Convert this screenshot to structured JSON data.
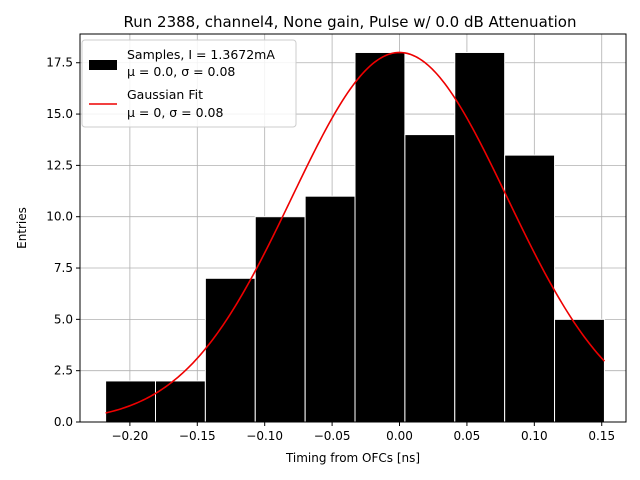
{
  "chart_data": {
    "type": "bar",
    "title": "Run 2388, channel4, None gain, Pulse w/ 0.0 dB Attenuation",
    "xlabel": "Timing from OFCs [ns]",
    "ylabel": "Entries",
    "xlim": [
      -0.237,
      0.168
    ],
    "ylim": [
      0,
      18.9
    ],
    "xticks": [
      -0.2,
      -0.15,
      -0.1,
      -0.05,
      0.0,
      0.05,
      0.1,
      0.15
    ],
    "xtick_labels": [
      "−0.20",
      "−0.15",
      "−0.10",
      "−0.05",
      "0.00",
      "0.05",
      "0.10",
      "0.15"
    ],
    "yticks": [
      0,
      2.5,
      5,
      7.5,
      10,
      12.5,
      15,
      17.5
    ],
    "ytick_labels": [
      "0.0",
      "2.5",
      "5.0",
      "7.5",
      "10.0",
      "12.5",
      "15.0",
      "17.5"
    ],
    "grid": true,
    "legend_position": "top-left",
    "histogram": {
      "bin_edges": [
        -0.218,
        -0.181,
        -0.144,
        -0.107,
        -0.07,
        -0.033,
        0.004,
        0.041,
        0.078,
        0.115,
        0.152
      ],
      "counts": [
        2,
        2,
        7,
        10,
        11,
        18,
        14,
        18,
        13,
        5
      ],
      "color": "#000000",
      "edgecolor": "#ffffff"
    },
    "fit": {
      "amplitude": 18,
      "mu": 0.0,
      "sigma": 0.08,
      "x_range": [
        -0.218,
        0.152
      ],
      "color": "#ee0000"
    },
    "legend": [
      {
        "kind": "patch",
        "line1": "Samples, I = 1.3672mA",
        "line2": "μ = 0.0, σ = 0.08",
        "color": "#000000"
      },
      {
        "kind": "line",
        "line1": "Gaussian Fit",
        "line2": "μ = 0, σ = 0.08",
        "color": "#ee0000"
      }
    ]
  }
}
